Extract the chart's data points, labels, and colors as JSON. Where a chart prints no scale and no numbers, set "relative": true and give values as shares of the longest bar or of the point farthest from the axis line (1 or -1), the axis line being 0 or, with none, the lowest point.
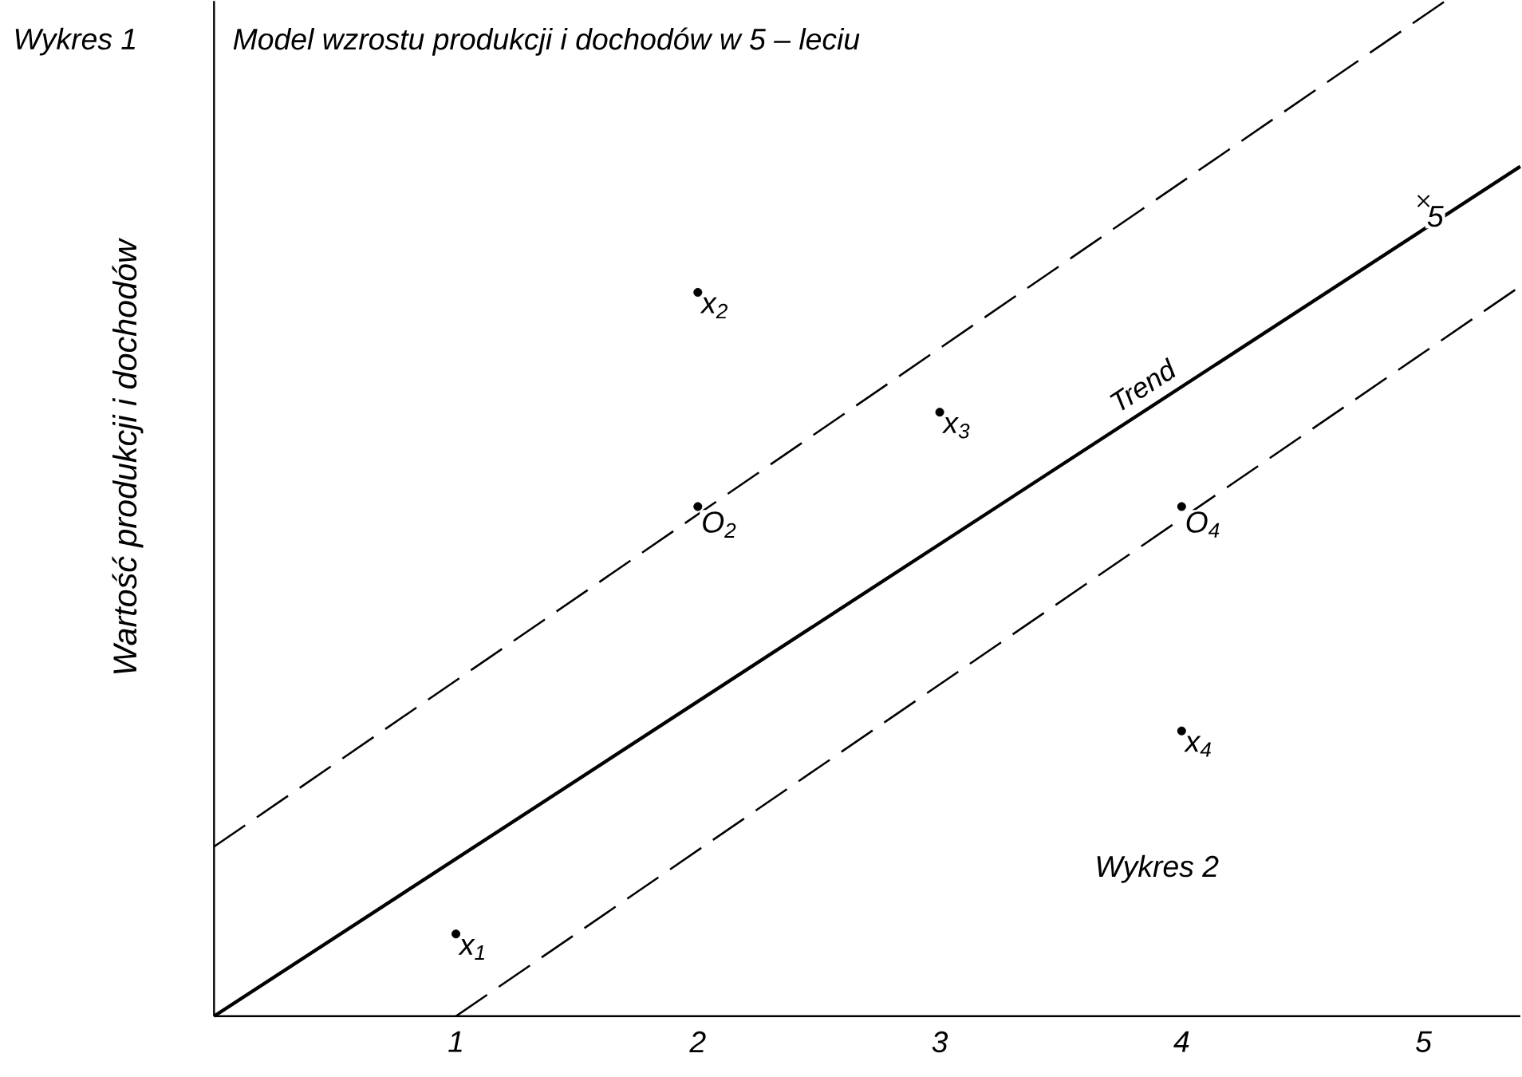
{
  "chart_data": {
    "type": "line",
    "title": "Model wzrostu produkcji i dochodów w 5 – leciu",
    "ylabel": "Wartość produkcji i dochodów",
    "relative": true,
    "xlim": [
      0,
      5.4
    ],
    "xticks": [
      1,
      2,
      3,
      4,
      5
    ],
    "series": [
      {
        "x": [
          0,
          5.09
        ],
        "values": [
          0.167,
          1
        ],
        "color": "#000000",
        "line_style": "dashed"
      },
      {
        "name": "Trend",
        "x": [
          0,
          5.4
        ],
        "values": [
          0,
          0.837
        ],
        "color": "#000000",
        "line_style": "solid"
      },
      {
        "x": [
          1,
          5.4
        ],
        "values": [
          0,
          0.719
        ],
        "color": "#000000",
        "line_style": "dashed"
      },
      {
        "type": "scatter",
        "x": [
          5
        ],
        "values": [
          0.803
        ],
        "color": "#000000",
        "marker": "cross"
      },
      {
        "type": "scatter",
        "x": [
          1,
          2,
          3,
          2,
          4,
          4
        ],
        "values": [
          0.081,
          0.713,
          0.595,
          0.502,
          0.502,
          0.281
        ],
        "color": "#000000",
        "marker": "circle"
      }
    ],
    "annotations": [
      "Wykres 1",
      {
        "text": "x$_{1}$",
        "x": 1,
        "y": 0.081
      },
      {
        "text": "x$_{2}$",
        "x": 2,
        "y": 0.713
      },
      {
        "text": "x$_{3}$",
        "x": 3,
        "y": 0.595
      },
      {
        "text": "O$_{2}$",
        "x": 2,
        "y": 0.502
      },
      {
        "text": "O$_{4}$",
        "x": 4,
        "y": 0.502
      },
      {
        "text": "x$_{4}$",
        "x": 4,
        "y": 0.281
      },
      {
        "text": "5",
        "x": 5,
        "y": 0.803
      },
      "Wykres 2"
    ]
  }
}
